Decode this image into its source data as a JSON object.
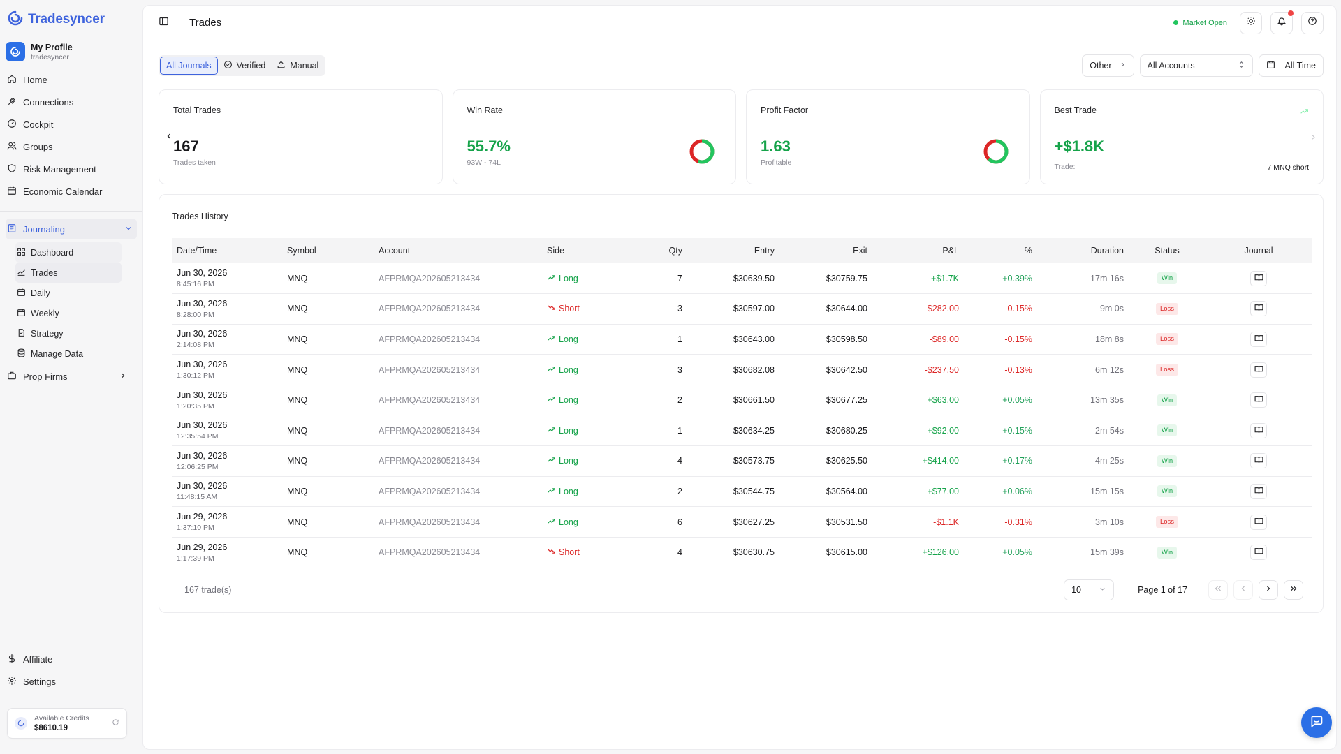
{
  "brand": {
    "name": "Tradesyncer"
  },
  "profile": {
    "name": "My Profile",
    "username": "tradesyncer"
  },
  "nav": {
    "main": [
      {
        "label": "Home",
        "icon": "home-icon"
      },
      {
        "label": "Connections",
        "icon": "plug-icon"
      },
      {
        "label": "Cockpit",
        "icon": "gauge-icon"
      },
      {
        "label": "Groups",
        "icon": "users-icon"
      },
      {
        "label": "Risk Management",
        "icon": "shield-icon"
      },
      {
        "label": "Economic Calendar",
        "icon": "calendar-icon"
      }
    ],
    "journaling": {
      "label": "Journaling",
      "items": [
        {
          "label": "Dashboard",
          "icon": "grid-icon"
        },
        {
          "label": "Trades",
          "icon": "trend-icon"
        },
        {
          "label": "Daily",
          "icon": "calendar-icon"
        },
        {
          "label": "Weekly",
          "icon": "calendar-icon"
        },
        {
          "label": "Strategy",
          "icon": "file-icon"
        },
        {
          "label": "Manage Data",
          "icon": "database-icon"
        }
      ]
    },
    "prop_firms": "Prop Firms",
    "bottom": [
      {
        "label": "Affiliate",
        "icon": "dollar-icon"
      },
      {
        "label": "Settings",
        "icon": "gear-icon"
      }
    ]
  },
  "credits": {
    "label": "Available Credits",
    "value": "$8610.19"
  },
  "topbar": {
    "title": "Trades",
    "market_status": "Market Open"
  },
  "filters": {
    "journal_tabs": [
      "All Journals",
      "Verified",
      "Manual"
    ],
    "other": "Other",
    "accounts": "All Accounts",
    "range": "All Time"
  },
  "cards": {
    "total_trades": {
      "title": "Total Trades",
      "value": "167",
      "sub": "Trades taken"
    },
    "win_rate": {
      "title": "Win Rate",
      "value": "55.7%",
      "sub": "93W - 74L",
      "fraction": 0.557
    },
    "profit_factor": {
      "title": "Profit Factor",
      "value": "1.63",
      "sub": "Profitable",
      "fraction": 0.62
    },
    "best_trade": {
      "title": "Best Trade",
      "value": "+$1.8K",
      "sub": "Trade:",
      "detail": "7 MNQ short"
    }
  },
  "history": {
    "title": "Trades History",
    "columns": [
      "Date/Time",
      "Symbol",
      "Account",
      "Side",
      "Qty",
      "Entry",
      "Exit",
      "P&L",
      "%",
      "Duration",
      "Status",
      "Journal"
    ],
    "rows": [
      {
        "date": "Jun 30, 2026",
        "time": "8:45:16 PM",
        "symbol": "MNQ",
        "account": "AFPRMQA202605213434",
        "side": "Long",
        "qty": "7",
        "entry": "$30639.50",
        "exit": "$30759.75",
        "pnl": "+$1.7K",
        "pct": "+0.39%",
        "duration": "17m 16s",
        "status": "Win"
      },
      {
        "date": "Jun 30, 2026",
        "time": "8:28:00 PM",
        "symbol": "MNQ",
        "account": "AFPRMQA202605213434",
        "side": "Short",
        "qty": "3",
        "entry": "$30597.00",
        "exit": "$30644.00",
        "pnl": "-$282.00",
        "pct": "-0.15%",
        "duration": "9m 0s",
        "status": "Loss"
      },
      {
        "date": "Jun 30, 2026",
        "time": "2:14:08 PM",
        "symbol": "MNQ",
        "account": "AFPRMQA202605213434",
        "side": "Long",
        "qty": "1",
        "entry": "$30643.00",
        "exit": "$30598.50",
        "pnl": "-$89.00",
        "pct": "-0.15%",
        "duration": "18m 8s",
        "status": "Loss"
      },
      {
        "date": "Jun 30, 2026",
        "time": "1:30:12 PM",
        "symbol": "MNQ",
        "account": "AFPRMQA202605213434",
        "side": "Long",
        "qty": "3",
        "entry": "$30682.08",
        "exit": "$30642.50",
        "pnl": "-$237.50",
        "pct": "-0.13%",
        "duration": "6m 12s",
        "status": "Loss"
      },
      {
        "date": "Jun 30, 2026",
        "time": "1:20:35 PM",
        "symbol": "MNQ",
        "account": "AFPRMQA202605213434",
        "side": "Long",
        "qty": "2",
        "entry": "$30661.50",
        "exit": "$30677.25",
        "pnl": "+$63.00",
        "pct": "+0.05%",
        "duration": "13m 35s",
        "status": "Win"
      },
      {
        "date": "Jun 30, 2026",
        "time": "12:35:54 PM",
        "symbol": "MNQ",
        "account": "AFPRMQA202605213434",
        "side": "Long",
        "qty": "1",
        "entry": "$30634.25",
        "exit": "$30680.25",
        "pnl": "+$92.00",
        "pct": "+0.15%",
        "duration": "2m 54s",
        "status": "Win"
      },
      {
        "date": "Jun 30, 2026",
        "time": "12:06:25 PM",
        "symbol": "MNQ",
        "account": "AFPRMQA202605213434",
        "side": "Long",
        "qty": "4",
        "entry": "$30573.75",
        "exit": "$30625.50",
        "pnl": "+$414.00",
        "pct": "+0.17%",
        "duration": "4m 25s",
        "status": "Win"
      },
      {
        "date": "Jun 30, 2026",
        "time": "11:48:15 AM",
        "symbol": "MNQ",
        "account": "AFPRMQA202605213434",
        "side": "Long",
        "qty": "2",
        "entry": "$30544.75",
        "exit": "$30564.00",
        "pnl": "+$77.00",
        "pct": "+0.06%",
        "duration": "15m 15s",
        "status": "Win"
      },
      {
        "date": "Jun 29, 2026",
        "time": "1:37:10 PM",
        "symbol": "MNQ",
        "account": "AFPRMQA202605213434",
        "side": "Long",
        "qty": "6",
        "entry": "$30627.25",
        "exit": "$30531.50",
        "pnl": "-$1.1K",
        "pct": "-0.31%",
        "duration": "3m 10s",
        "status": "Loss"
      },
      {
        "date": "Jun 29, 2026",
        "time": "1:17:39 PM",
        "symbol": "MNQ",
        "account": "AFPRMQA202605213434",
        "side": "Short",
        "qty": "4",
        "entry": "$30630.75",
        "exit": "$30615.00",
        "pnl": "+$126.00",
        "pct": "+0.05%",
        "duration": "15m 39s",
        "status": "Win"
      }
    ],
    "count_label": "167 trade(s)",
    "page_size": "10",
    "page_info": "Page 1 of 17"
  },
  "colors": {
    "accent": "#3e63dd",
    "profit": "#16a34a",
    "loss": "#dc2626"
  }
}
